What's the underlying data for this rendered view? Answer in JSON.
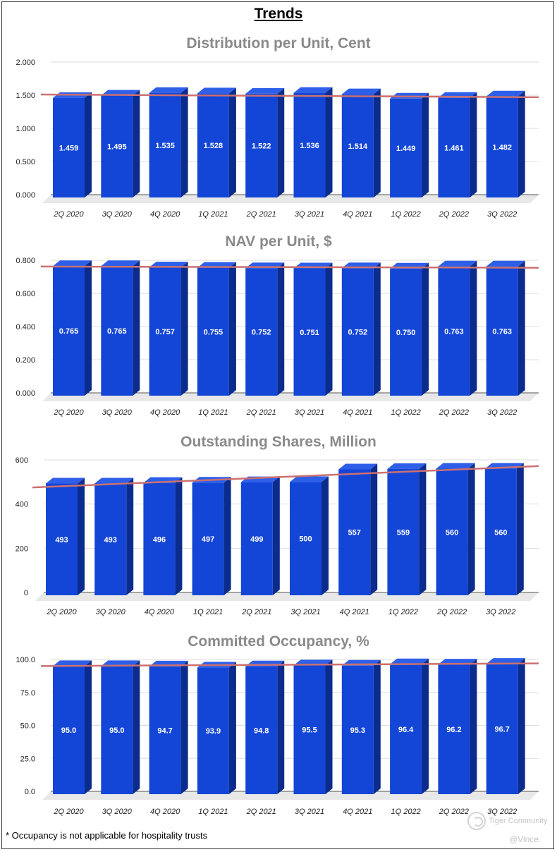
{
  "page": {
    "title": "Trends",
    "footnote": "* Occupancy is not applicable for hospitality trusts",
    "watermark": "Tiger Community",
    "signature": "@Vince."
  },
  "colors": {
    "bar_front": "#1346d6",
    "bar_side": "#0b2c8c",
    "bar_top": "#2d5fe8",
    "trend": "#cc7070",
    "grid": "#dddddd",
    "floor": "#e8e8e8"
  },
  "chart_data": [
    {
      "type": "bar",
      "title": "Distribution per Unit, Cent",
      "categories": [
        "2Q 2020",
        "3Q 2020",
        "4Q 2020",
        "1Q 2021",
        "2Q 2021",
        "3Q 2021",
        "4Q 2021",
        "1Q 2022",
        "2Q 2022",
        "3Q 2022"
      ],
      "values": [
        1.459,
        1.495,
        1.535,
        1.528,
        1.522,
        1.536,
        1.514,
        1.449,
        1.461,
        1.482
      ],
      "value_labels": [
        "1.459",
        "1.495",
        "1.535",
        "1.528",
        "1.522",
        "1.536",
        "1.514",
        "1.449",
        "1.461",
        "1.482"
      ],
      "yticks": [
        "0.000",
        "0.500",
        "1.000",
        "1.500",
        "2.000"
      ],
      "ylim": [
        0,
        2
      ],
      "trend": [
        1.51,
        1.47
      ]
    },
    {
      "type": "bar",
      "title": "NAV per Unit, $",
      "categories": [
        "2Q 2020",
        "3Q 2020",
        "4Q 2020",
        "1Q 2021",
        "2Q 2021",
        "3Q 2021",
        "4Q 2021",
        "1Q 2022",
        "2Q 2022",
        "3Q 2022"
      ],
      "values": [
        0.765,
        0.765,
        0.757,
        0.755,
        0.752,
        0.751,
        0.752,
        0.75,
        0.763,
        0.763
      ],
      "value_labels": [
        "0.765",
        "0.765",
        "0.757",
        "0.755",
        "0.752",
        "0.751",
        "0.752",
        "0.750",
        "0.763",
        "0.763"
      ],
      "yticks": [
        "0.000",
        "0.200",
        "0.400",
        "0.600",
        "0.800"
      ],
      "ylim": [
        0,
        0.8
      ],
      "trend": [
        0.762,
        0.755
      ]
    },
    {
      "type": "bar",
      "title": "Outstanding Shares, Million",
      "categories": [
        "2Q 2020",
        "3Q 2020",
        "4Q 2020",
        "1Q 2021",
        "2Q 2021",
        "3Q 2021",
        "4Q 2021",
        "1Q 2022",
        "2Q 2022",
        "3Q 2022"
      ],
      "values": [
        493,
        493,
        496,
        497,
        499,
        500,
        557,
        559,
        560,
        560
      ],
      "value_labels": [
        "493",
        "493",
        "496",
        "497",
        "499",
        "500",
        "557",
        "559",
        "560",
        "560"
      ],
      "yticks": [
        "0",
        "200",
        "400",
        "600"
      ],
      "ylim": [
        0,
        600
      ],
      "trend": [
        475,
        572
      ]
    },
    {
      "type": "bar",
      "title": "Committed Occupancy, %",
      "categories": [
        "2Q 2020",
        "3Q 2020",
        "4Q 2020",
        "1Q 2021",
        "2Q 2021",
        "3Q 2021",
        "4Q 2021",
        "1Q 2022",
        "2Q 2022",
        "3Q 2022"
      ],
      "values": [
        95.0,
        95.0,
        94.7,
        93.9,
        94.8,
        95.5,
        95.3,
        96.4,
        96.2,
        96.7
      ],
      "value_labels": [
        "95.0",
        "95.0",
        "94.7",
        "93.9",
        "94.8",
        "95.5",
        "95.3",
        "96.4",
        "96.2",
        "96.7"
      ],
      "yticks": [
        "0.0",
        "25.0",
        "50.0",
        "75.0",
        "100.0"
      ],
      "ylim": [
        0,
        100
      ],
      "trend": [
        95.0,
        97.0
      ]
    }
  ]
}
